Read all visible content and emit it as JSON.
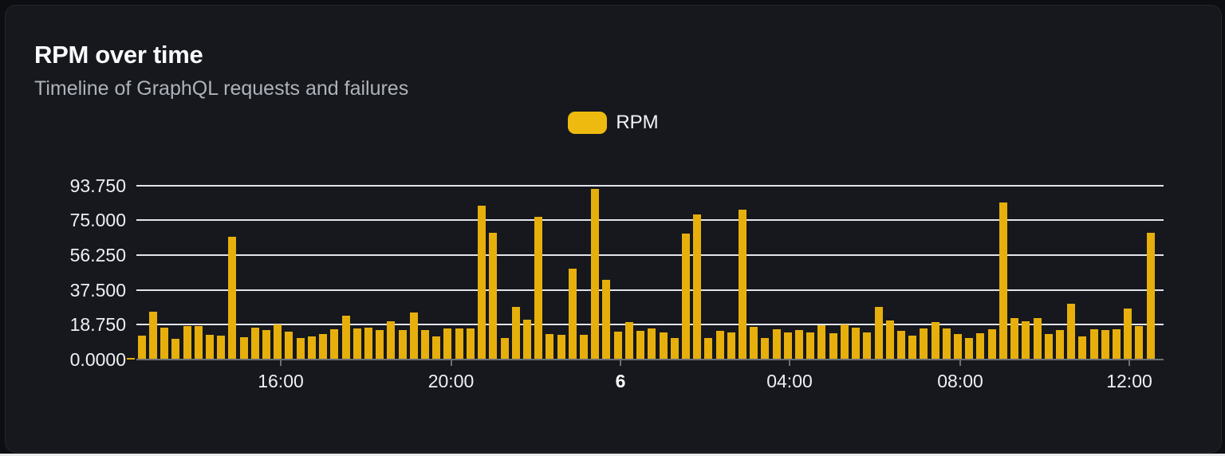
{
  "card": {
    "title": "RPM over time",
    "subtitle": "Timeline of GraphQL requests and failures"
  },
  "legend": {
    "items": [
      {
        "label": "RPM",
        "color": "#eeba10"
      }
    ]
  },
  "colors": {
    "page_background": "#0c0e11",
    "card_background": "#16181e",
    "bar": "#e6af0b",
    "gridline": "#e2e5ec",
    "axis": "#6b6f76",
    "title_text": "#fafbfd",
    "subtitle_text": "#aeb3b9",
    "axis_label_text": "#eef0f3"
  },
  "chart_data": {
    "type": "bar",
    "title": "RPM over time",
    "subtitle": "Timeline of GraphQL requests and failures",
    "ylabel": "RPM",
    "ylim": [
      0,
      93.75
    ],
    "grid": true,
    "legend_position": "top-center",
    "y_axis": {
      "ticks": [
        {
          "label": "93.750",
          "value": 93.75
        },
        {
          "label": "75.000",
          "value": 75
        },
        {
          "label": "56.250",
          "value": 56.25
        },
        {
          "label": "37.500",
          "value": 37.5
        },
        {
          "label": "18.750",
          "value": 18.75
        },
        {
          "label": "0.0000",
          "value": 0
        }
      ]
    },
    "x_axis": {
      "ticks": [
        {
          "label": "16:00",
          "px": 345,
          "emphasis": false
        },
        {
          "label": "20:00",
          "px": 558.5,
          "emphasis": false
        },
        {
          "label": "6",
          "px": 771,
          "emphasis": true
        },
        {
          "label": "04:00",
          "px": 983,
          "emphasis": false
        },
        {
          "label": "08:00",
          "px": 1197,
          "emphasis": false
        },
        {
          "label": "12:00",
          "px": 1409,
          "emphasis": false
        }
      ]
    },
    "series": [
      {
        "name": "RPM",
        "values": [
          1.0,
          12.9,
          25.8,
          17.2,
          11.2,
          18.1,
          18.1,
          13.1,
          12.7,
          66.0,
          11.9,
          17.2,
          15.9,
          19.1,
          15.1,
          11.6,
          12.6,
          13.8,
          16.5,
          23.7,
          16.6,
          17.2,
          15.8,
          20.5,
          15.9,
          25.5,
          15.9,
          12.3,
          16.6,
          16.9,
          16.9,
          82.7,
          68.1,
          11.6,
          28.4,
          21.5,
          77.0,
          13.8,
          13.1,
          48.8,
          13.1,
          92.0,
          43.1,
          15.2,
          20.1,
          15.5,
          16.9,
          14.8,
          11.6,
          67.9,
          78.0,
          11.5,
          15.5,
          14.6,
          80.6,
          17.4,
          11.5,
          16.5,
          14.8,
          15.8,
          14.5,
          18.4,
          14.1,
          19.1,
          17.3,
          14.4,
          28.4,
          21.2,
          15.3,
          12.9,
          16.6,
          20.1,
          16.6,
          13.6,
          11.6,
          14.1,
          16.2,
          84.4,
          22.4,
          20.8,
          22.4,
          13.9,
          15.8,
          29.9,
          12.6,
          16.4,
          15.8,
          16.2,
          27.7,
          17.9,
          68.3
        ]
      }
    ]
  }
}
